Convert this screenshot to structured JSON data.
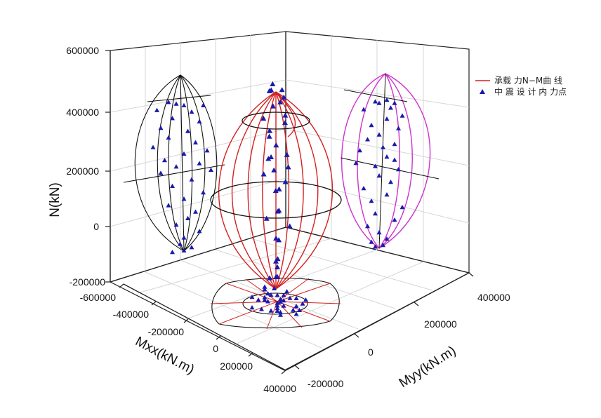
{
  "chart_data": {
    "type": "scatter",
    "subtype": "3d-interaction-surface",
    "title": "",
    "axes": {
      "z": {
        "label": "N(kN)",
        "ticks": [
          "600000",
          "400000",
          "200000",
          "0",
          "-200000"
        ],
        "range": [
          -200000,
          600000
        ]
      },
      "x": {
        "label": "Mxx(kN.m)",
        "ticks": [
          "-600000",
          "-400000",
          "-200000",
          "0",
          "200000",
          "400000"
        ],
        "range": [
          -600000,
          400000
        ]
      },
      "y": {
        "label": "Myy(kN.m)",
        "ticks": [
          "-200000",
          "0",
          "200000",
          "400000"
        ],
        "range": [
          -200000,
          400000
        ]
      }
    },
    "grid": true,
    "legend_position": "top-right",
    "colors": {
      "surface_3d": "#d42020",
      "projection_xz": "#111111",
      "projection_yz": "#cc33cc",
      "projection_xy": "#111111",
      "points": "#1a1aaa"
    },
    "series": [
      {
        "name": "承载 力N−M曲 线",
        "kind": "line",
        "color": "#d42020",
        "surface": {
          "n_max": 460000,
          "n_min": -90000,
          "m_max": 180000
        }
      },
      {
        "name": "中 震 设 计 内 力点",
        "kind": "scatter",
        "marker": "triangle",
        "color": "#1a1aaa",
        "points": [
          [
            -20000,
            10000,
            390000
          ],
          [
            -10000,
            -5000,
            385000
          ],
          [
            0,
            20000,
            380000
          ],
          [
            25000,
            0,
            380000
          ],
          [
            -35000,
            15000,
            365000
          ],
          [
            10000,
            -20000,
            360000
          ],
          [
            -15000,
            30000,
            340000
          ],
          [
            20000,
            10000,
            330000
          ],
          [
            -30000,
            -10000,
            310000
          ],
          [
            5000,
            25000,
            300000
          ],
          [
            -20000,
            0,
            280000
          ],
          [
            15000,
            -15000,
            265000
          ],
          [
            -40000,
            20000,
            250000
          ],
          [
            30000,
            5000,
            240000
          ],
          [
            0,
            -25000,
            230000
          ],
          [
            -25000,
            10000,
            210000
          ],
          [
            20000,
            20000,
            200000
          ],
          [
            -10000,
            -30000,
            190000
          ],
          [
            35000,
            -5000,
            180000
          ],
          [
            -30000,
            25000,
            170000
          ],
          [
            10000,
            0,
            150000
          ],
          [
            -15000,
            15000,
            130000
          ],
          [
            25000,
            -20000,
            110000
          ],
          [
            0,
            10000,
            90000
          ],
          [
            -20000,
            -10000,
            70000
          ],
          [
            15000,
            30000,
            50000
          ],
          [
            5000,
            -5000,
            30000
          ],
          [
            -10000,
            20000,
            10000
          ],
          [
            20000,
            -15000,
            -10000
          ],
          [
            0,
            0,
            -30000
          ],
          [
            -5000,
            10000,
            -50000
          ],
          [
            10000,
            -10000,
            -60000
          ],
          [
            0,
            5000,
            -70000
          ],
          [
            -15000,
            -5000,
            -75000
          ]
        ]
      }
    ]
  }
}
